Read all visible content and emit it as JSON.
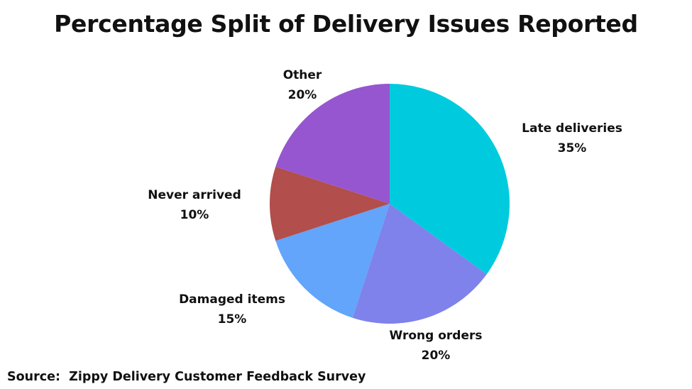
{
  "title": "Percentage Split of Delivery Issues Reported",
  "source": "Source:  Zippy Delivery Customer Feedback Survey",
  "chart_data": {
    "type": "pie",
    "title": "Percentage Split of Delivery Issues Reported",
    "unit": "%",
    "start": "12 o'clock",
    "direction": "clockwise",
    "slices": [
      {
        "label": "Late deliveries",
        "value": 35,
        "value_label": "35%",
        "color": "#00CBDE"
      },
      {
        "label": "Wrong orders",
        "value": 20,
        "value_label": "20%",
        "color": "#7E82EA"
      },
      {
        "label": "Damaged items",
        "value": 15,
        "value_label": "15%",
        "color": "#62A5FA"
      },
      {
        "label": "Never arrived",
        "value": 10,
        "value_label": "10%",
        "color": "#B24E4B"
      },
      {
        "label": "Other",
        "value": 20,
        "value_label": "20%",
        "color": "#9656CF"
      }
    ]
  }
}
